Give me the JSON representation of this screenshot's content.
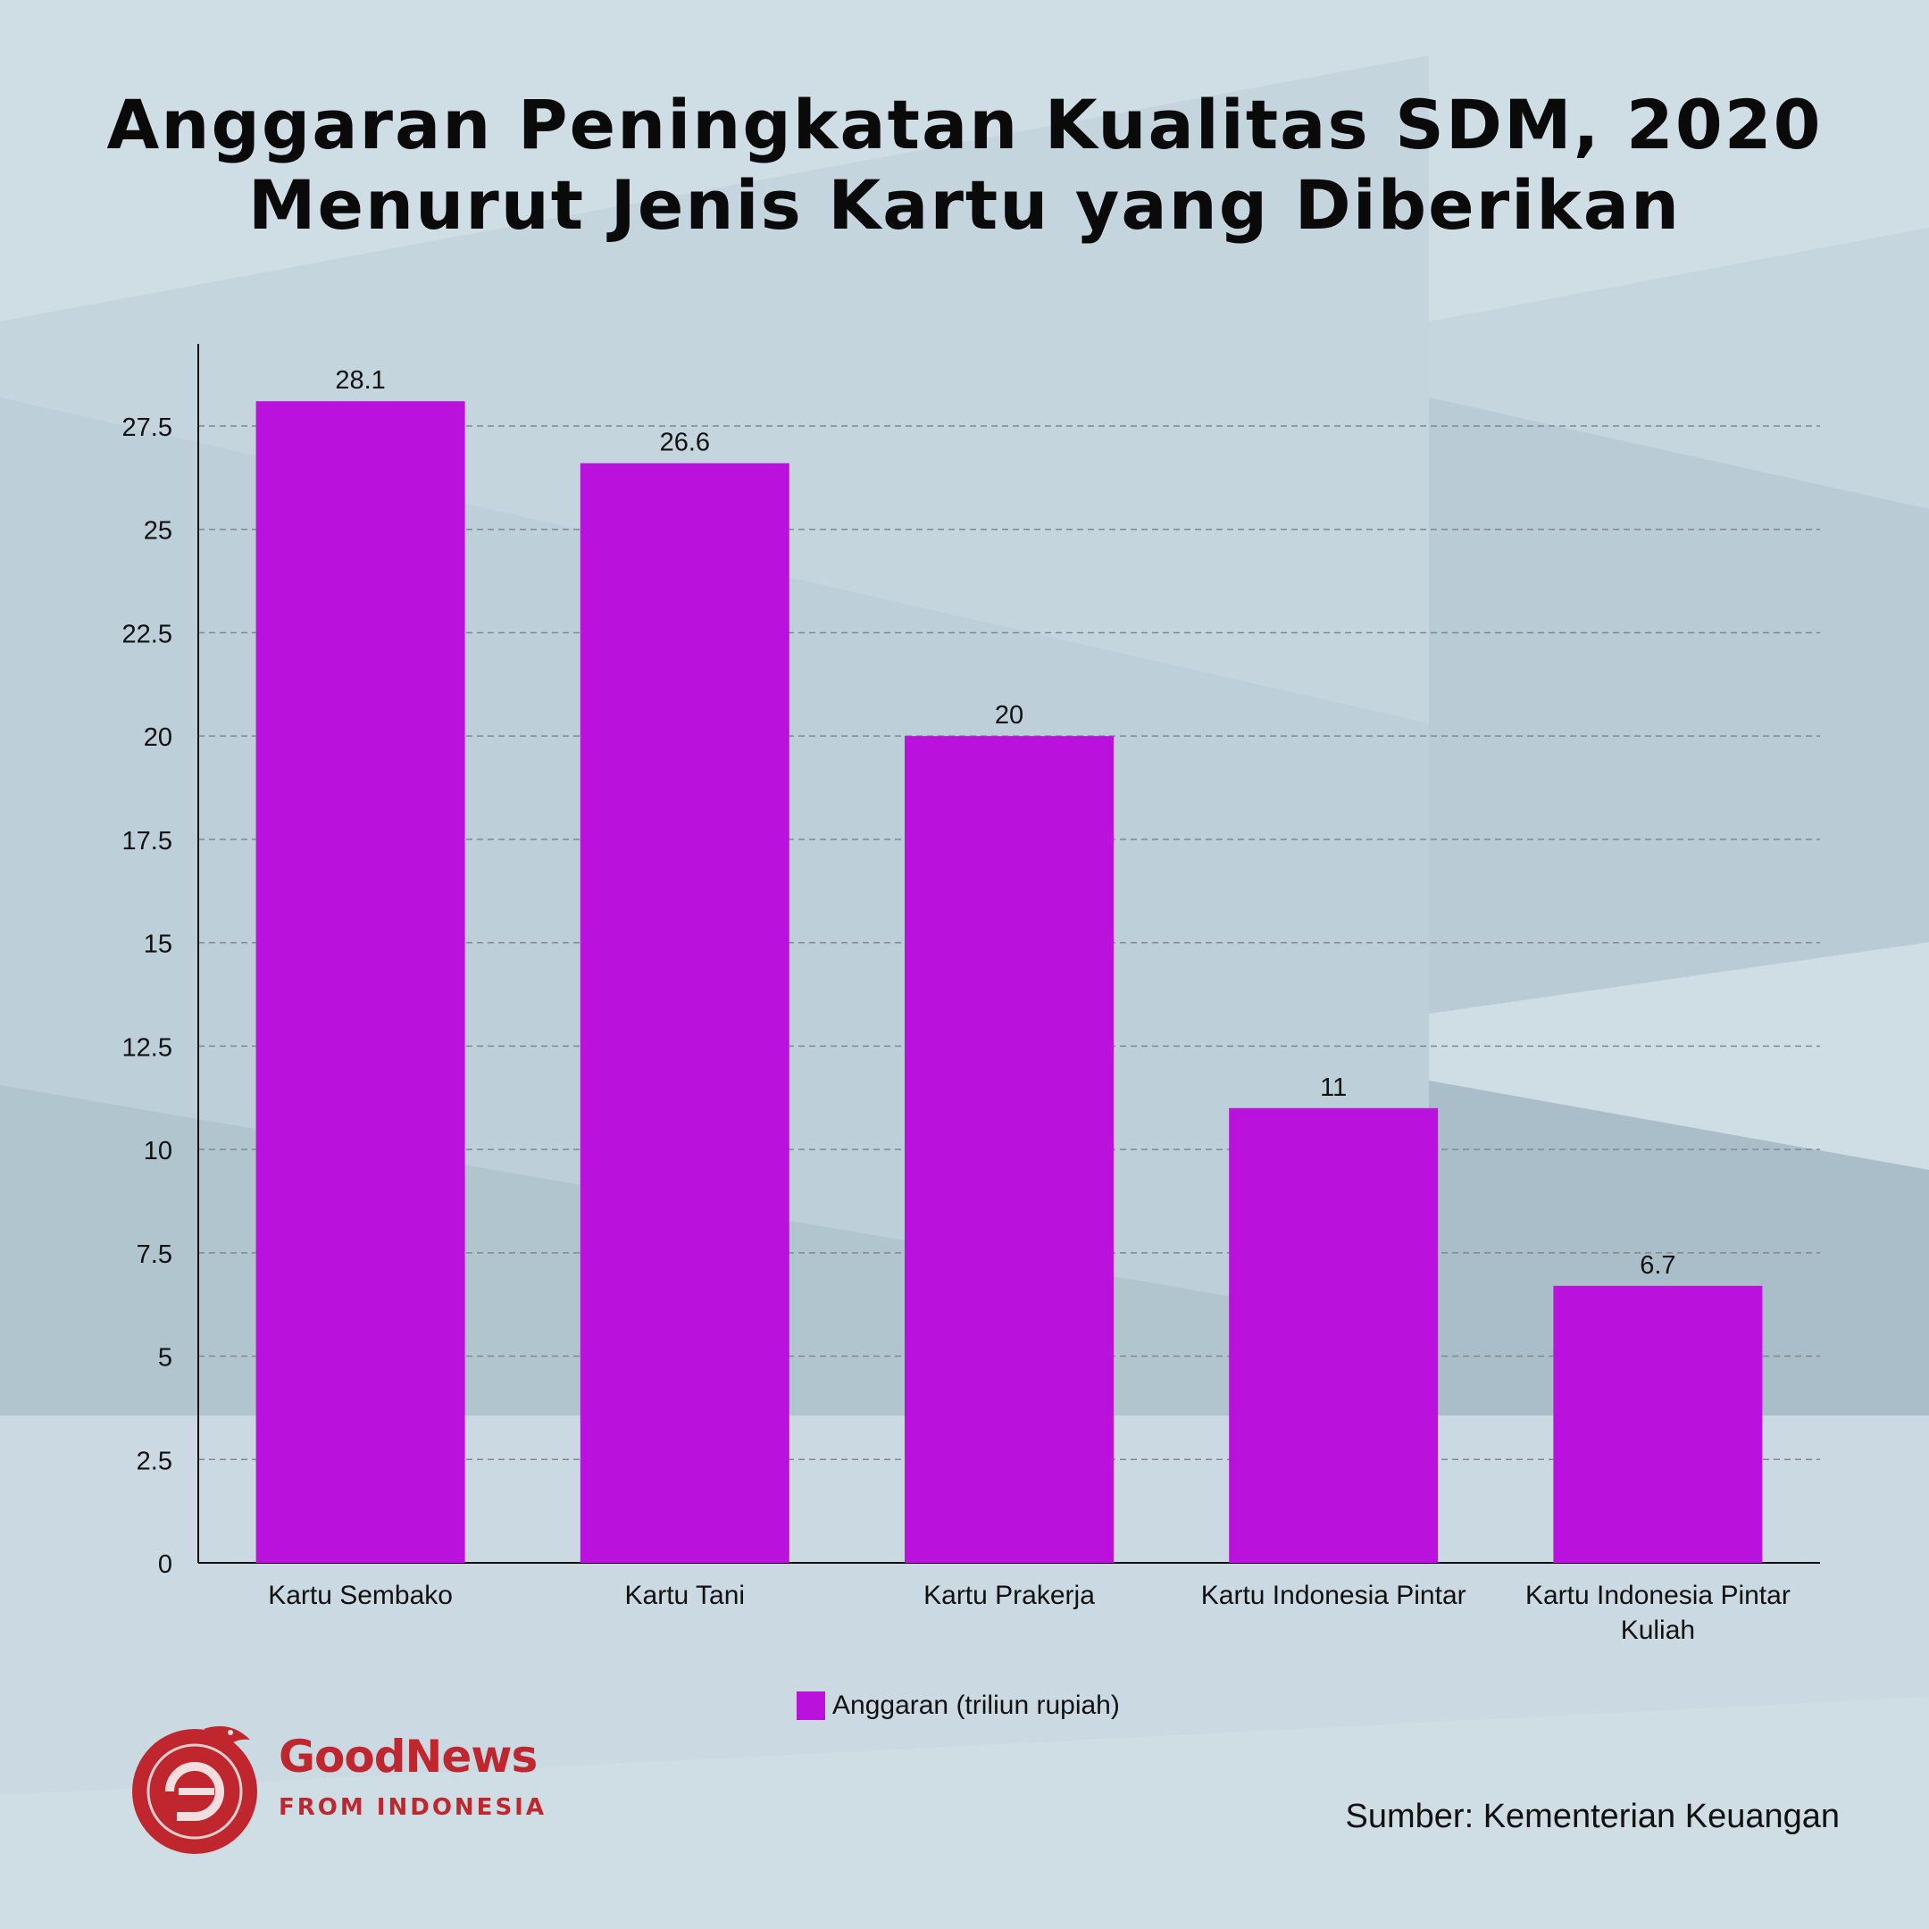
{
  "title_lines": [
    "Anggaran Peningkatan Kualitas SDM, 2020",
    "Menurut Jenis Kartu yang Diberikan"
  ],
  "source": "Sumber: Kementerian Keuangan",
  "logo": {
    "line1": "GoodNews",
    "line2": "FROM INDONESIA"
  },
  "colors": {
    "bar": "#bb11dd",
    "grid": "#7f8a90",
    "axis": "#111111",
    "brand": "#c0262e"
  },
  "chart_data": {
    "type": "bar",
    "title": "Anggaran Peningkatan Kualitas SDM, 2020 Menurut Jenis Kartu yang Diberikan",
    "categories": [
      [
        "Kartu Sembako"
      ],
      [
        "Kartu Tani"
      ],
      [
        "Kartu Prakerja"
      ],
      [
        "Kartu Indonesia Pintar"
      ],
      [
        "Kartu Indonesia Pintar",
        "Kuliah"
      ]
    ],
    "series": [
      {
        "name": "Anggaran (triliun rupiah)",
        "values": [
          28.1,
          26.6,
          20,
          11,
          6.7
        ]
      }
    ],
    "value_labels": [
      "28.1",
      "26.6",
      "20",
      "11",
      "6.7"
    ],
    "yticks": [
      "0",
      "2.5",
      "5",
      "7.5",
      "10",
      "12.5",
      "15",
      "17.5",
      "20",
      "22.5",
      "25",
      "27.5"
    ],
    "ylim": [
      0,
      29.5
    ],
    "grid": true,
    "legend_position": "bottom-center"
  }
}
